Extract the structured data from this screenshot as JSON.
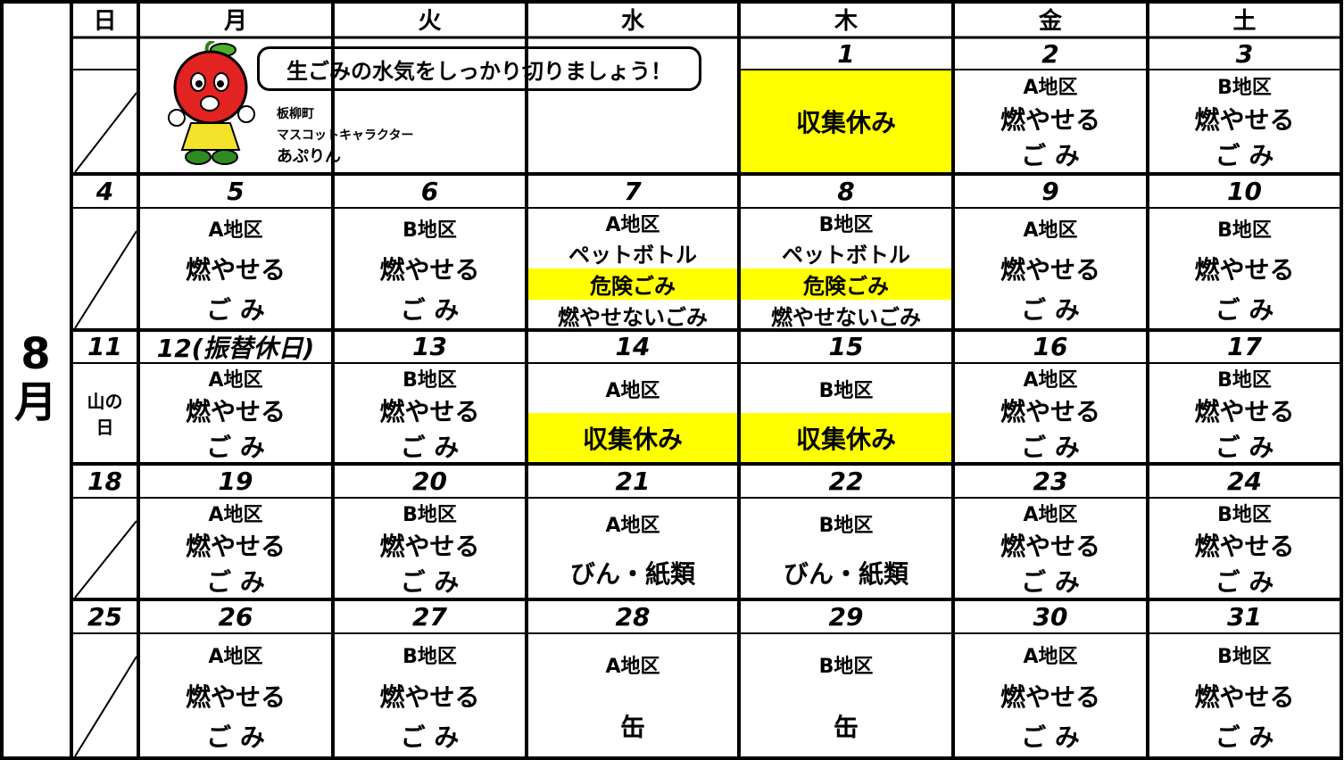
{
  "month": "8月",
  "weekdays": [
    "日",
    "月",
    "火",
    "水",
    "木",
    "金",
    "土"
  ],
  "mascot": {
    "message": "生ごみの水気をしっかり切りましょう！",
    "caption": [
      "板柳町",
      "マスコットキャラクター",
      "あぷりん"
    ]
  },
  "weeks": [
    {
      "days": [
        null,
        null,
        null,
        null,
        {
          "date": "1",
          "lines": [
            "収集休み"
          ],
          "highlighted_lines": [
            0
          ]
        },
        {
          "date": "2",
          "lines": [
            "A地区",
            "燃やせる",
            "ご み"
          ]
        },
        {
          "date": "3",
          "lines": [
            "B地区",
            "燃やせる",
            "ご み"
          ]
        }
      ]
    },
    {
      "days": [
        {
          "date": "4",
          "lines": []
        },
        {
          "date": "5",
          "lines": [
            "A地区",
            "燃やせる",
            "ご み"
          ]
        },
        {
          "date": "6",
          "lines": [
            "B地区",
            "燃やせる",
            "ご み"
          ]
        },
        {
          "date": "7",
          "lines": [
            "A地区",
            "ペットボトル",
            "危険ごみ",
            "燃やせないごみ"
          ],
          "highlighted_lines": [
            2
          ]
        },
        {
          "date": "8",
          "lines": [
            "B地区",
            "ペットボトル",
            "危険ごみ",
            "燃やせないごみ"
          ],
          "highlighted_lines": [
            2
          ]
        },
        {
          "date": "9",
          "lines": [
            "A地区",
            "燃やせる",
            "ご み"
          ]
        },
        {
          "date": "10",
          "lines": [
            "B地区",
            "燃やせる",
            "ご み"
          ]
        }
      ]
    },
    {
      "days": [
        {
          "date": "11",
          "lines": [
            "山の",
            "日"
          ]
        },
        {
          "date": "12(振替休日)",
          "lines": [
            "A地区",
            "燃やせる",
            "ご み"
          ]
        },
        {
          "date": "13",
          "lines": [
            "B地区",
            "燃やせる",
            "ご み"
          ]
        },
        {
          "date": "14",
          "lines": [
            "A地区",
            "収集休み"
          ],
          "highlighted_lines": [
            1
          ]
        },
        {
          "date": "15",
          "lines": [
            "B地区",
            "収集休み"
          ],
          "highlighted_lines": [
            1
          ]
        },
        {
          "date": "16",
          "lines": [
            "A地区",
            "燃やせる",
            "ご み"
          ]
        },
        {
          "date": "17",
          "lines": [
            "B地区",
            "燃やせる",
            "ご み"
          ]
        }
      ]
    },
    {
      "days": [
        {
          "date": "18",
          "lines": []
        },
        {
          "date": "19",
          "lines": [
            "A地区",
            "燃やせる",
            "ご み"
          ]
        },
        {
          "date": "20",
          "lines": [
            "B地区",
            "燃やせる",
            "ご み"
          ]
        },
        {
          "date": "21",
          "lines": [
            "A地区",
            "びん・紙類"
          ]
        },
        {
          "date": "22",
          "lines": [
            "B地区",
            "びん・紙類"
          ]
        },
        {
          "date": "23",
          "lines": [
            "A地区",
            "燃やせる",
            "ご み"
          ]
        },
        {
          "date": "24",
          "lines": [
            "B地区",
            "燃やせる",
            "ご み"
          ]
        }
      ]
    },
    {
      "days": [
        {
          "date": "25",
          "lines": []
        },
        {
          "date": "26",
          "lines": [
            "A地区",
            "燃やせる",
            "ご み"
          ]
        },
        {
          "date": "27",
          "lines": [
            "B地区",
            "燃やせる",
            "ご み"
          ]
        },
        {
          "date": "28",
          "lines": [
            "A地区",
            "缶"
          ]
        },
        {
          "date": "29",
          "lines": [
            "B地区",
            "缶"
          ]
        },
        {
          "date": "30",
          "lines": [
            "A地区",
            "燃やせる",
            "ご み"
          ]
        },
        {
          "date": "31",
          "lines": [
            "B地区",
            "燃やせる",
            "ご み"
          ]
        }
      ]
    }
  ]
}
